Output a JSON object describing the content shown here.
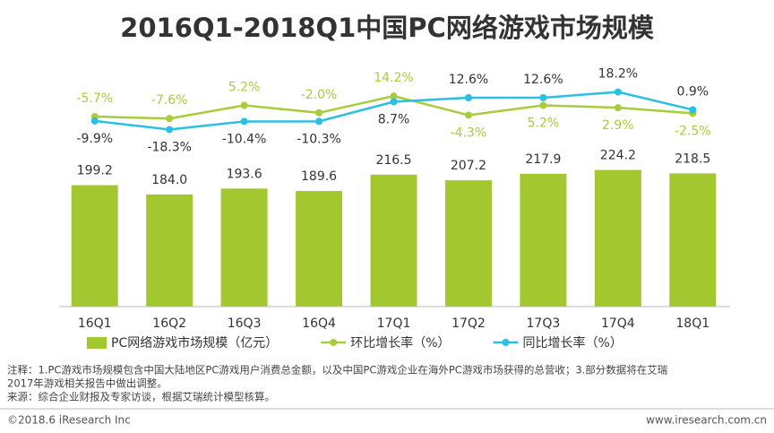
{
  "chart_data": {
    "type": "bar",
    "title": "2016Q1-2018Q1中国PC网络游戏市场规模",
    "categories": [
      "16Q1",
      "16Q2",
      "16Q3",
      "16Q4",
      "17Q1",
      "17Q2",
      "17Q3",
      "17Q4",
      "18Q1"
    ],
    "series": [
      {
        "name": "PC网络游戏市场规模（亿元）",
        "type": "bar",
        "color": "#a3c72f",
        "values": [
          199.2,
          184.0,
          193.6,
          189.6,
          216.5,
          207.2,
          217.9,
          224.2,
          218.5
        ],
        "value_labels": [
          "199.2",
          "184.0",
          "193.6",
          "189.6",
          "216.5",
          "207.2",
          "217.9",
          "224.2",
          "218.5"
        ]
      },
      {
        "name": "环比增长率（%）",
        "type": "line",
        "axis": "y2",
        "color": "#a8cc3c",
        "values": [
          -5.7,
          -7.6,
          5.2,
          -2.0,
          14.2,
          -4.3,
          5.2,
          2.9,
          -2.5
        ],
        "value_labels": [
          "-5.7%",
          "-7.6%",
          "5.2%",
          "-2.0%",
          "14.2%",
          "-4.3%",
          "5.2%",
          "2.9%",
          "-2.5%"
        ]
      },
      {
        "name": "同比增长率（%）",
        "type": "line",
        "axis": "y2",
        "color": "#2bbfe3",
        "values": [
          -9.9,
          -18.3,
          -10.4,
          -10.3,
          8.7,
          12.6,
          12.6,
          18.2,
          0.9
        ],
        "value_labels": [
          "-9.9%",
          "-18.3%",
          "-10.4%",
          "-10.3%",
          "8.7%",
          "12.6%",
          "12.6%",
          "18.2%",
          "0.9%"
        ]
      }
    ],
    "ylim": [
      0,
      300
    ],
    "y2lim": [
      -50,
      50
    ]
  },
  "notes": [
    "注释：1.PC游戏市场规模包含中国大陆地区PC游戏用户消费总金额，以及中国PC游戏企业在海外PC游戏市场获得的总营收；3.部分数据将在艾瑞",
    "2017年游戏相关报告中做出调整。",
    "来源：综合企业财报及专家访谈，根据艾瑞统计模型核算。"
  ],
  "footer": {
    "left": "©2018.6 iResearch Inc",
    "right": "www.iresearch.com.cn"
  }
}
